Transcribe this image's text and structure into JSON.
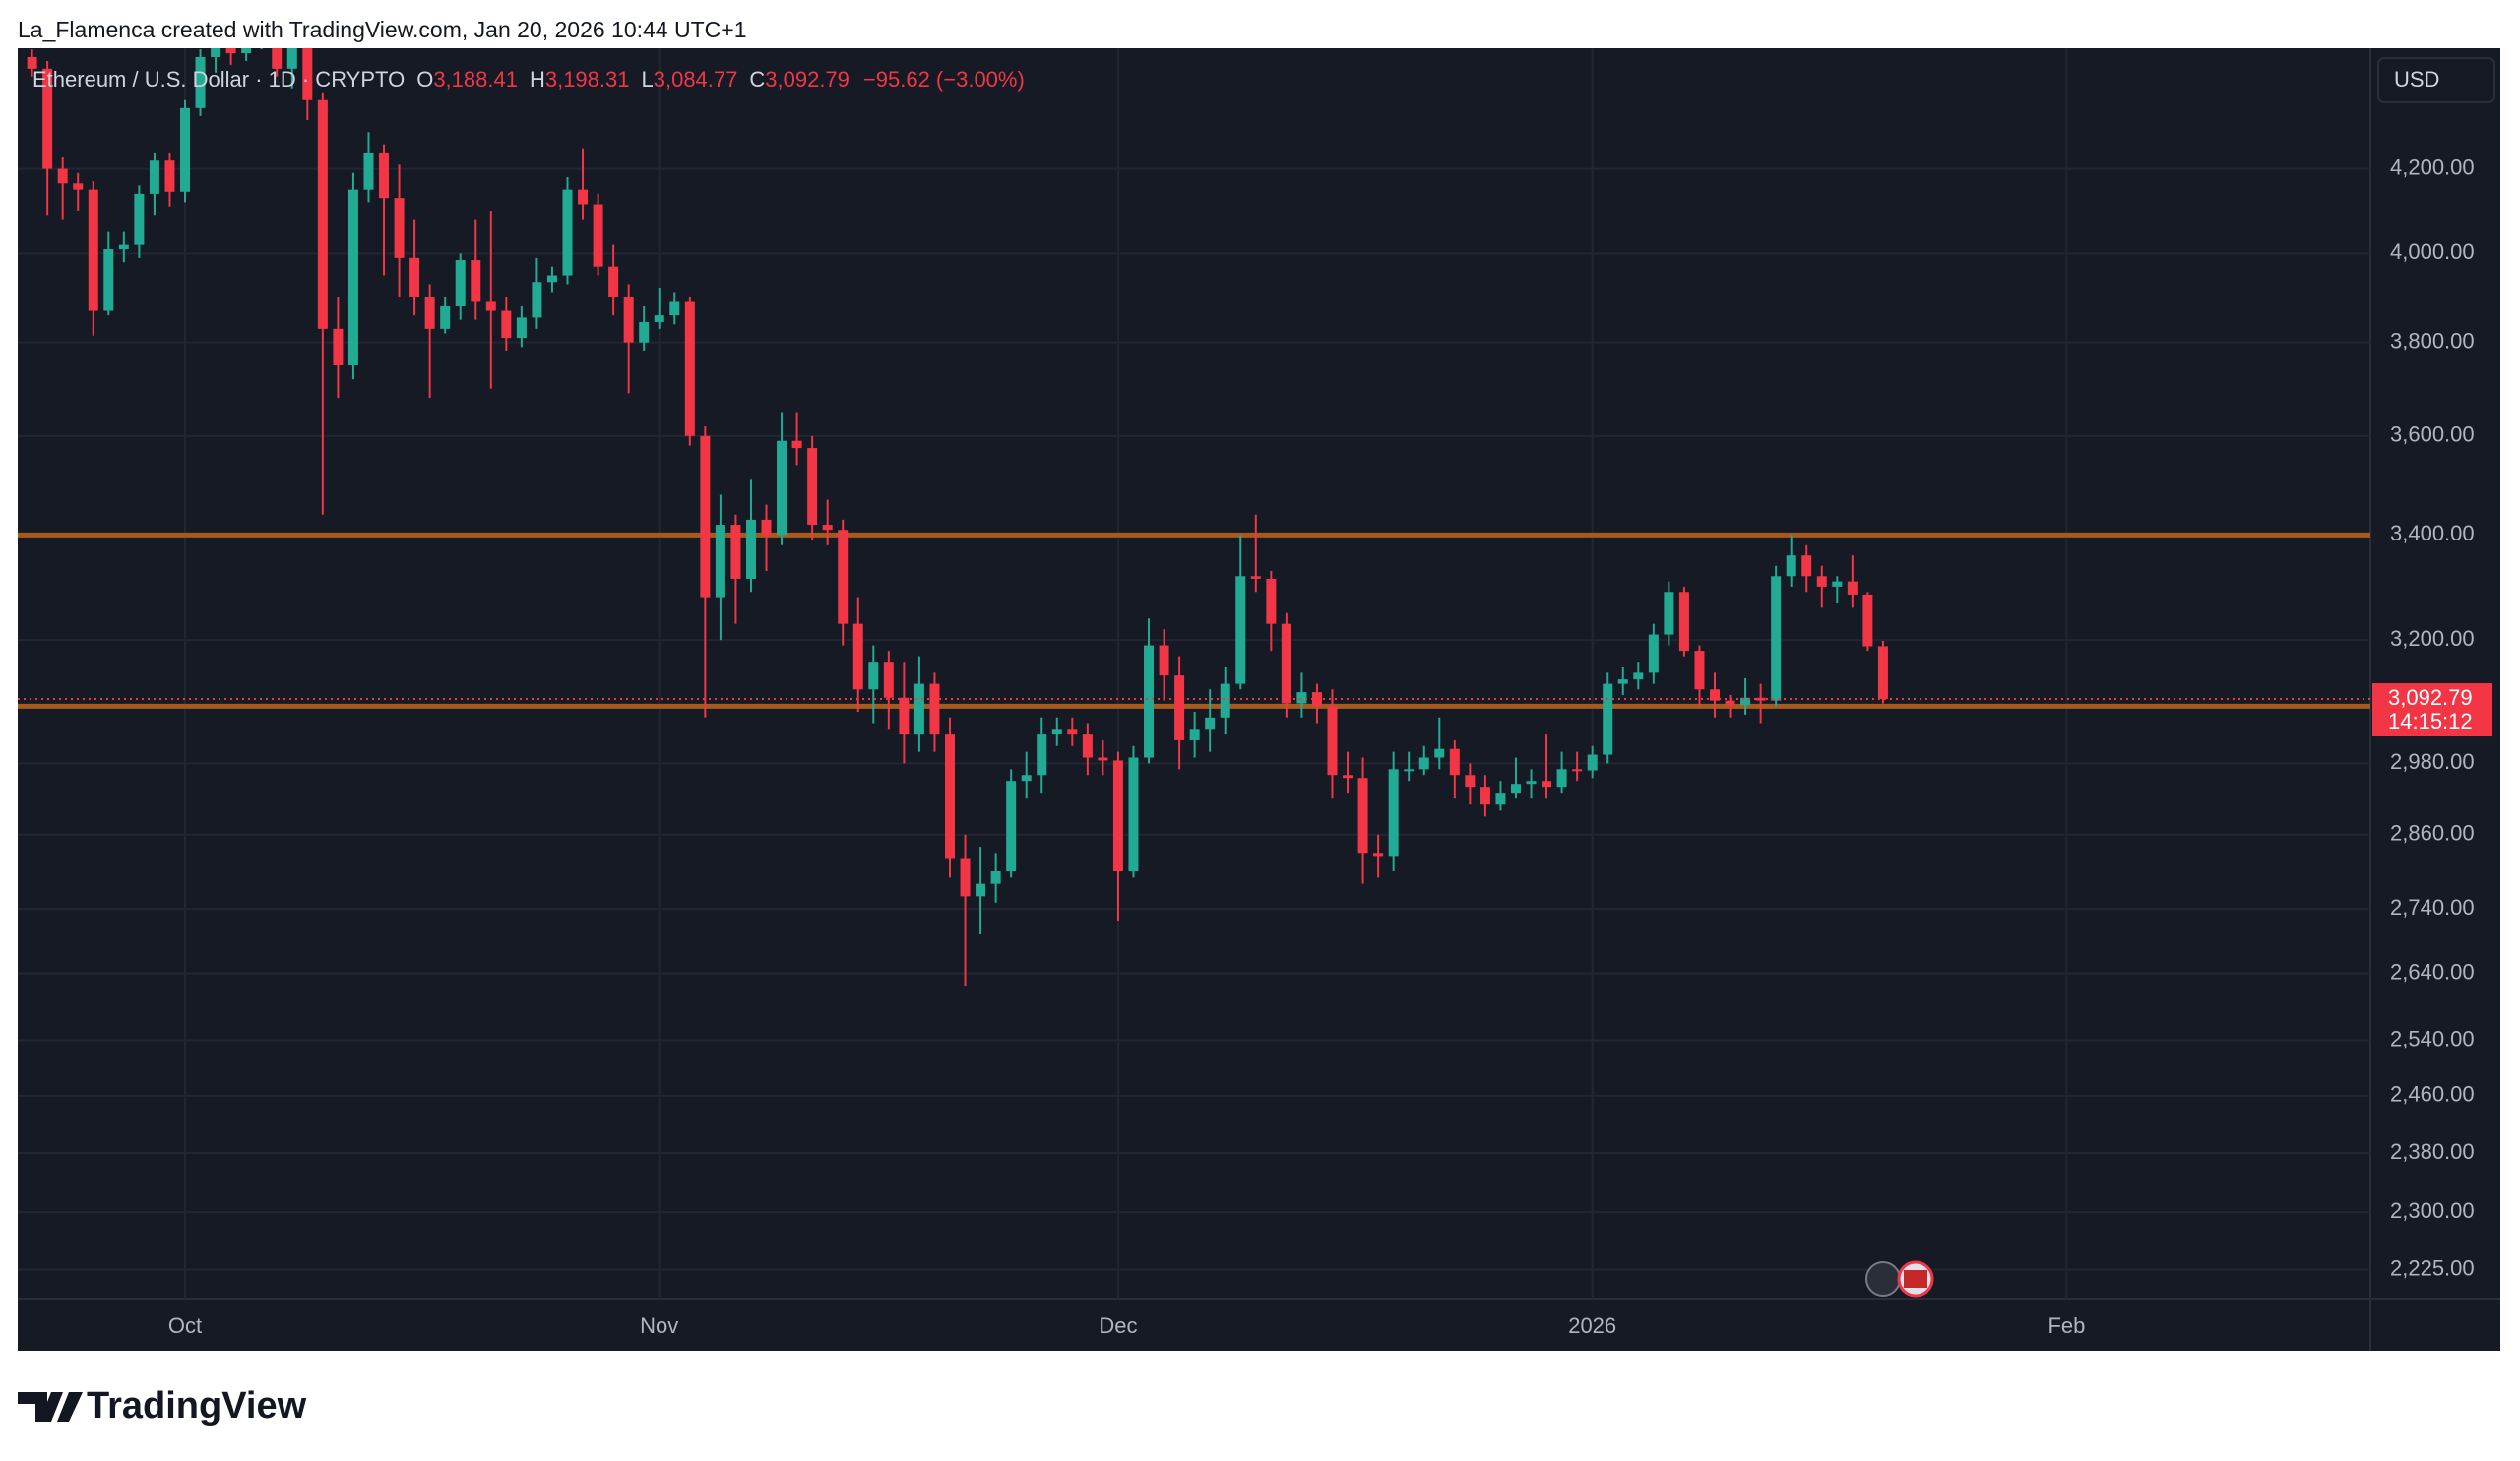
{
  "header": "La_Flamenca created with TradingView.com, Jan 20, 2026 10:44 UTC+1",
  "brand": "TradingView",
  "currency_button": "USD",
  "chart_data": {
    "type": "candlestick",
    "legend": {
      "symbol": "Ethereum / U.S. Dollar · 1D · CRYPTO",
      "fields": [
        {
          "key": "O",
          "value": "3,188.41"
        },
        {
          "key": "H",
          "value": "3,198.31"
        },
        {
          "key": "L",
          "value": "3,084.77"
        },
        {
          "key": "C",
          "value": "3,092.79"
        }
      ],
      "change": "−95.62 (−3.00%)"
    },
    "price_label": "3,092.79",
    "countdown": "14:15:12",
    "up_color": "#22ab94",
    "down_color": "#f23645",
    "hline_color": "#a85a1c",
    "hlines": [
      3400,
      3080
    ],
    "log_scale": true,
    "grid": true,
    "ylim": [
      2188,
      4503
    ],
    "yticks": [
      {
        "value": 2225,
        "label": "2,225.00"
      },
      {
        "value": 2300,
        "label": "2,300.00"
      },
      {
        "value": 2380,
        "label": "2,380.00"
      },
      {
        "value": 2460,
        "label": "2,460.00"
      },
      {
        "value": 2540,
        "label": "2,540.00"
      },
      {
        "value": 2640,
        "label": "2,640.00"
      },
      {
        "value": 2740,
        "label": "2,740.00"
      },
      {
        "value": 2860,
        "label": "2,860.00"
      },
      {
        "value": 2980,
        "label": "2,980.00"
      },
      {
        "value": 3200,
        "label": "3,200.00"
      },
      {
        "value": 3400,
        "label": "3,400.00"
      },
      {
        "value": 3600,
        "label": "3,600.00"
      },
      {
        "value": 3800,
        "label": "3,800.00"
      },
      {
        "value": 4000,
        "label": "4,000.00"
      },
      {
        "value": 4200,
        "label": "4,200.00"
      }
    ],
    "categories": [
      null,
      null,
      null,
      null,
      null,
      null,
      null,
      null,
      null,
      null,
      "Oct",
      null,
      null,
      null,
      null,
      null,
      null,
      null,
      null,
      null,
      null,
      null,
      null,
      null,
      null,
      null,
      null,
      null,
      null,
      null,
      null,
      null,
      null,
      null,
      null,
      null,
      null,
      null,
      null,
      null,
      null,
      "Nov",
      null,
      null,
      null,
      null,
      null,
      null,
      null,
      null,
      null,
      null,
      null,
      null,
      null,
      null,
      null,
      null,
      null,
      null,
      null,
      null,
      null,
      null,
      null,
      null,
      null,
      null,
      null,
      null,
      null,
      "Dec",
      null,
      null,
      null,
      null,
      null,
      null,
      null,
      null,
      null,
      null,
      null,
      null,
      null,
      null,
      null,
      null,
      null,
      null,
      null,
      null,
      null,
      null,
      null,
      null,
      null,
      null,
      null,
      null,
      null,
      null,
      "2026",
      null,
      null,
      null,
      null,
      null,
      null,
      null,
      null,
      null,
      null,
      null,
      null,
      null,
      null,
      null,
      null,
      null,
      null,
      null,
      null,
      null,
      null,
      null,
      null,
      null,
      null,
      null,
      null,
      null,
      null,
      "Feb",
      null,
      null,
      null,
      null,
      null,
      null,
      null,
      null,
      null,
      null,
      null,
      null,
      null,
      null,
      null,
      null,
      null,
      null,
      null
    ],
    "open": [
      4480,
      4450,
      4200,
      4165,
      4150,
      3870,
      4010,
      4020,
      4140,
      4220,
      4145,
      4350,
      4480,
      4510,
      4490,
      4515,
      4680,
      4450,
      4530,
      4370,
      3830,
      3750,
      4150,
      4240,
      4130,
      3990,
      3900,
      3830,
      3880,
      3985,
      3890,
      3870,
      3810,
      3855,
      3935,
      3950,
      4150,
      4115,
      3970,
      3900,
      3800,
      3845,
      3860,
      3890,
      3600,
      3280,
      3420,
      3315,
      3430,
      3400,
      3590,
      3575,
      3420,
      3410,
      3230,
      3110,
      3160,
      3095,
      3030,
      3120,
      3030,
      2820,
      2760,
      2780,
      2800,
      2950,
      2960,
      3030,
      3040,
      3030,
      2990,
      2985,
      2800,
      2990,
      3190,
      3135,
      3020,
      3040,
      3060,
      3120,
      3320,
      3315,
      3230,
      3085,
      3105,
      3080,
      2960,
      2955,
      2830,
      2825,
      2970,
      2970,
      2990,
      3005,
      2960,
      2940,
      2910,
      2930,
      2945,
      2950,
      2940,
      2970,
      2968,
      2995,
      3120,
      3128,
      3140,
      3210,
      3290,
      3180,
      3110,
      3090,
      3082,
      3095,
      3090,
      3320,
      3360,
      3320,
      3300,
      3310,
      3285,
      3188.41,
      null,
      null,
      null,
      null,
      null,
      null,
      null,
      null,
      null,
      null,
      null,
      null,
      null,
      null,
      null,
      null,
      null,
      null,
      null,
      null,
      null,
      null,
      null,
      null,
      null,
      null,
      null,
      null,
      null,
      null,
      null
    ],
    "high": [
      4500,
      4470,
      4230,
      4190,
      4170,
      4050,
      4050,
      4160,
      4240,
      4240,
      4370,
      4500,
      4540,
      4530,
      4560,
      4750,
      4690,
      4560,
      4550,
      4390,
      3900,
      4190,
      4290,
      4260,
      4210,
      4080,
      3930,
      3900,
      4000,
      4080,
      4100,
      3900,
      3880,
      3990,
      3970,
      4180,
      4250,
      4140,
      4020,
      3930,
      3880,
      3920,
      3910,
      3900,
      3620,
      3480,
      3440,
      3510,
      3460,
      3650,
      3650,
      3600,
      3470,
      3430,
      3280,
      3190,
      3180,
      3160,
      3170,
      3140,
      3060,
      2860,
      2840,
      2830,
      2970,
      3000,
      3060,
      3060,
      3060,
      3050,
      3020,
      3000,
      3010,
      3240,
      3220,
      3170,
      3070,
      3110,
      3150,
      3400,
      3440,
      3330,
      3250,
      3140,
      3120,
      3110,
      3000,
      2990,
      2860,
      3000,
      3000,
      3010,
      3060,
      3020,
      2980,
      2960,
      2950,
      2990,
      2970,
      3030,
      3000,
      3000,
      3010,
      3140,
      3150,
      3160,
      3230,
      3310,
      3300,
      3190,
      3140,
      3100,
      3130,
      3120,
      3340,
      3400,
      3380,
      3340,
      3320,
      3360,
      3290,
      3198.31,
      null,
      null,
      null,
      null,
      null,
      null,
      null,
      null,
      null,
      null,
      null,
      null,
      null,
      null,
      null,
      null,
      null,
      null,
      null,
      null,
      null,
      null,
      null,
      null,
      null,
      null,
      null,
      null,
      null,
      null,
      null
    ],
    "low": [
      4430,
      4090,
      4080,
      4100,
      3815,
      3860,
      3980,
      3990,
      4090,
      4110,
      4120,
      4330,
      4440,
      4460,
      4470,
      4500,
      4430,
      4400,
      4320,
      3440,
      3680,
      3720,
      4120,
      3950,
      3900,
      3860,
      3680,
      3820,
      3850,
      3850,
      3700,
      3780,
      3790,
      3830,
      3910,
      3930,
      4080,
      3950,
      3860,
      3690,
      3780,
      3830,
      3840,
      3580,
      3060,
      3200,
      3230,
      3290,
      3330,
      3380,
      3540,
      3390,
      3380,
      3190,
      3070,
      3050,
      3040,
      2980,
      3000,
      3000,
      2790,
      2620,
      2700,
      2750,
      2790,
      2920,
      2930,
      3010,
      3010,
      2960,
      2960,
      2720,
      2790,
      2980,
      3090,
      2970,
      2990,
      3000,
      3030,
      3110,
      3290,
      3180,
      3060,
      3060,
      3050,
      2920,
      2930,
      2780,
      2790,
      2800,
      2950,
      2960,
      2970,
      2920,
      2910,
      2890,
      2900,
      2920,
      2920,
      2920,
      2930,
      2950,
      2955,
      2980,
      3100,
      3110,
      3120,
      3190,
      3170,
      3080,
      3060,
      3060,
      3065,
      3050,
      3080,
      3300,
      3290,
      3260,
      3270,
      3260,
      3180,
      3084.77,
      null,
      null,
      null,
      null,
      null,
      null,
      null,
      null,
      null,
      null,
      null,
      null,
      null,
      null,
      null,
      null,
      null,
      null,
      null,
      null,
      null,
      null,
      null,
      null,
      null,
      null,
      null,
      null,
      null,
      null,
      null
    ],
    "close": [
      4450,
      4200,
      4165,
      4150,
      3870,
      4010,
      4020,
      4140,
      4220,
      4145,
      4350,
      4480,
      4510,
      4490,
      4515,
      4680,
      4450,
      4530,
      4370,
      3830,
      3750,
      4150,
      4240,
      4130,
      3990,
      3900,
      3830,
      3880,
      3985,
      3890,
      3870,
      3810,
      3855,
      3935,
      3950,
      4150,
      4115,
      3970,
      3900,
      3800,
      3845,
      3860,
      3890,
      3600,
      3280,
      3420,
      3315,
      3430,
      3400,
      3590,
      3575,
      3420,
      3410,
      3230,
      3110,
      3160,
      3095,
      3030,
      3120,
      3030,
      2820,
      2760,
      2780,
      2800,
      2950,
      2960,
      3030,
      3040,
      3030,
      2990,
      2985,
      2800,
      2990,
      3190,
      3135,
      3020,
      3040,
      3060,
      3120,
      3320,
      3315,
      3230,
      3085,
      3105,
      3080,
      2960,
      2955,
      2830,
      2825,
      2970,
      2970,
      2990,
      3005,
      2960,
      2940,
      2910,
      2930,
      2945,
      2950,
      2940,
      2970,
      2968,
      2995,
      3120,
      3128,
      3140,
      3210,
      3290,
      3180,
      3110,
      3090,
      3082,
      3095,
      3090,
      3320,
      3360,
      3320,
      3300,
      3310,
      3285,
      3188.41,
      3092.79,
      null,
      null,
      null,
      null,
      null,
      null,
      null,
      null,
      null,
      null,
      null,
      null,
      null,
      null,
      null,
      null,
      null,
      null,
      null,
      null,
      null,
      null,
      null,
      null,
      null,
      null,
      null,
      null,
      null,
      null,
      null
    ]
  }
}
